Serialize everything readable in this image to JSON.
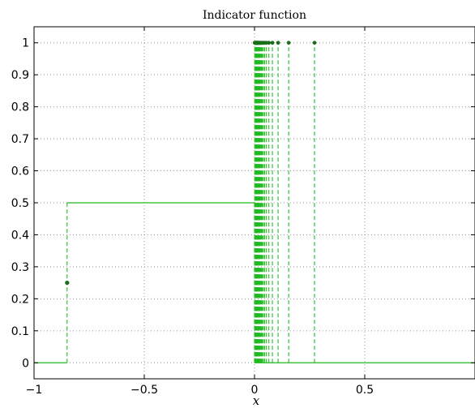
{
  "chart_data": {
    "type": "line",
    "title": "Indicator function",
    "xlabel": "x",
    "ylabel": "",
    "xlim": [
      -1,
      1
    ],
    "ylim": [
      -0.05,
      1.05
    ],
    "grid": true,
    "x_ticks": [
      -1,
      -0.5,
      0,
      0.5
    ],
    "x_tick_labels": [
      "−1",
      "−0.5",
      "0",
      "0.5"
    ],
    "y_ticks": [
      0,
      0.1,
      0.2,
      0.3,
      0.4,
      0.5,
      0.6,
      0.7,
      0.8,
      0.9,
      1
    ],
    "y_tick_labels": [
      "0",
      "0.1",
      "0.2",
      "0.3",
      "0.4",
      "0.5",
      "0.6",
      "0.7",
      "0.8",
      "0.9",
      "1"
    ],
    "colors": {
      "line": "#22bb22",
      "marker": "#1a6e1a",
      "grid": "#999999",
      "axes": "#000000"
    },
    "series": [
      {
        "kind": "step",
        "segments": [
          {
            "x": [
              -1,
              -0.85
            ],
            "y": [
              0,
              0
            ]
          },
          {
            "x": [
              -0.85,
              0
            ],
            "y": [
              0.5,
              0.5
            ]
          },
          {
            "x": [
              0,
              1
            ],
            "y": [
              0,
              0
            ]
          }
        ],
        "jumps": [
          {
            "x": -0.85,
            "y_from": 0,
            "y_to": 0.5
          },
          {
            "x": 0,
            "y_from": 0,
            "y_to": 0.5
          }
        ],
        "points": [
          {
            "x": -0.85,
            "y": 0.25
          }
        ]
      },
      {
        "kind": "stem",
        "x": [
          0.272,
          0.155,
          0.107,
          0.081,
          0.065,
          0.054,
          0.046,
          0.04,
          0.036,
          0.032,
          0.029,
          0.026,
          0.024,
          0.022,
          0.02,
          0.018,
          0.017,
          0.015,
          0.014,
          0.013,
          0.012,
          0.011,
          0.01,
          0.009,
          0.008,
          0.007,
          0.006,
          0.005,
          0.004,
          0.003,
          0.002,
          0.001
        ],
        "y": 1
      }
    ]
  }
}
